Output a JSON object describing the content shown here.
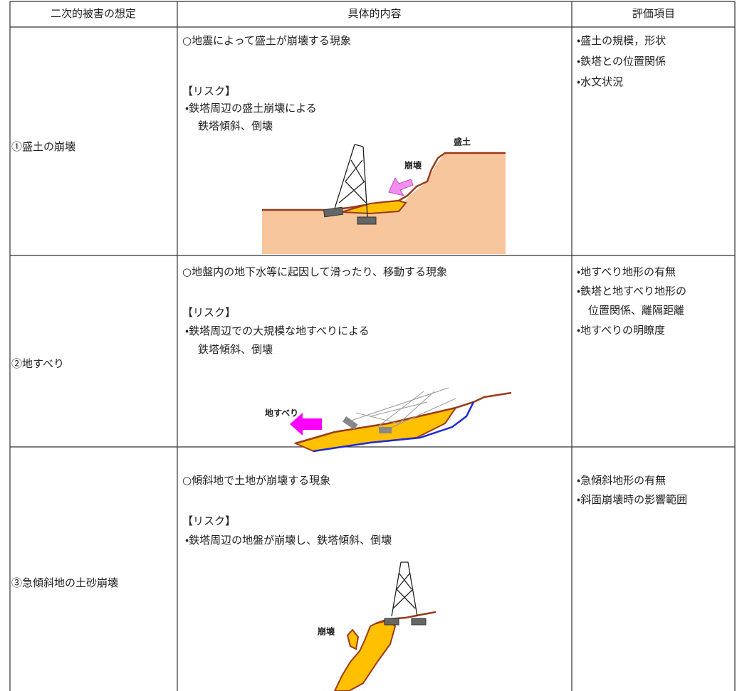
{
  "table": {
    "headers": [
      "二次的被害の想定",
      "具体的内容",
      "評価項目"
    ],
    "rows": [
      {
        "damage": "①盛土の崩壊",
        "description": "○地震によって盛土が崩壊する現象",
        "risk_heading": "【リスク】",
        "risk_lines": [
          "・鉄塔周辺の盛土崩壊による",
          "鉄塔傾斜、倒壊"
        ],
        "items": [
          "・盛土の規模，形状",
          "・鉄塔との位置関係",
          "・水文状況"
        ],
        "figure_labels": [
          "崩壊",
          "盛土"
        ]
      },
      {
        "damage": "②地すべり",
        "description": "○地盤内の地下水等に起因して滑ったり、移動する現象",
        "risk_heading": "【リスク】",
        "risk_lines": [
          "・鉄塔周辺での大規模な地すべりによる",
          "鉄塔傾斜、倒壊"
        ],
        "items": [
          "・地すべり地形の有無",
          "・鉄塔と地すべり地形の",
          "位置関係、離隔距離",
          "・地すべりの明瞭度"
        ],
        "figure_labels": [
          "地すべり"
        ]
      },
      {
        "damage": "③急傾斜地の土砂崩壊",
        "description": "○傾斜地で土地が崩壊する現象",
        "risk_heading": "【リスク】",
        "risk_lines": [
          "・鉄塔周辺の地盤が崩壊し、鉄塔傾斜、倒壊"
        ],
        "items": [
          "・急傾斜地形の有無",
          "・斜面崩壊時の影響範囲"
        ],
        "figure_labels": [
          "崩壊"
        ]
      }
    ]
  }
}
